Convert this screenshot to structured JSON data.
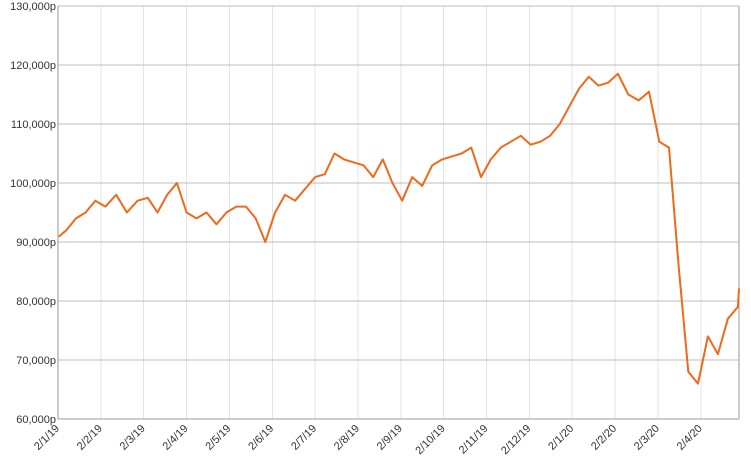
{
  "chart_data": {
    "type": "line",
    "title": "",
    "xlabel": "",
    "ylabel": "",
    "ylim": [
      60000,
      130000
    ],
    "grid": true,
    "legend": "none",
    "line_color": "#ee6a1a",
    "y_ticks": [
      {
        "value": 60000,
        "label": "60,000p"
      },
      {
        "value": 70000,
        "label": "70,000p"
      },
      {
        "value": 80000,
        "label": "80,000p"
      },
      {
        "value": 90000,
        "label": "90,000p"
      },
      {
        "value": 100000,
        "label": "100,000p"
      },
      {
        "value": 110000,
        "label": "110,000p"
      },
      {
        "value": 120000,
        "label": "120,000p"
      },
      {
        "value": 130000,
        "label": "130,000p"
      }
    ],
    "x_ticks": [
      "2/1/19",
      "2/2/19",
      "2/3/19",
      "2/4/19",
      "2/5/19",
      "2/6/19",
      "2/7/19",
      "2/8/19",
      "2/9/19",
      "2/10/19",
      "2/11/19",
      "2/12/19",
      "2/1/20",
      "2/2/20",
      "2/3/20",
      "2/4/20"
    ],
    "x_range": [
      "2019-01-02",
      "2020-05-01"
    ],
    "series": [
      {
        "x": [
          "2019-01-02",
          "2019-01-07",
          "2019-01-14",
          "2019-01-21",
          "2019-01-28",
          "2019-02-04",
          "2019-02-11",
          "2019-02-18",
          "2019-02-25",
          "2019-03-04",
          "2019-03-11",
          "2019-03-18",
          "2019-03-25",
          "2019-04-01",
          "2019-04-08",
          "2019-04-15",
          "2019-04-22",
          "2019-04-29",
          "2019-05-06",
          "2019-05-13",
          "2019-05-20",
          "2019-05-27",
          "2019-06-03",
          "2019-06-10",
          "2019-06-17",
          "2019-06-24",
          "2019-07-01",
          "2019-07-08",
          "2019-07-15",
          "2019-07-22",
          "2019-07-29",
          "2019-08-05",
          "2019-08-12",
          "2019-08-19",
          "2019-08-26",
          "2019-09-02",
          "2019-09-09",
          "2019-09-16",
          "2019-09-23",
          "2019-09-30",
          "2019-10-07",
          "2019-10-14",
          "2019-10-21",
          "2019-10-28",
          "2019-11-04",
          "2019-11-11",
          "2019-11-18",
          "2019-11-25",
          "2019-12-02",
          "2019-12-09",
          "2019-12-16",
          "2019-12-23",
          "2019-12-30",
          "2020-01-06",
          "2020-01-13",
          "2020-01-20",
          "2020-01-27",
          "2020-02-03",
          "2020-02-10",
          "2020-02-17",
          "2020-02-24",
          "2020-03-02",
          "2020-03-09",
          "2020-03-16",
          "2020-03-23",
          "2020-03-30",
          "2020-04-06",
          "2020-04-13",
          "2020-04-20",
          "2020-04-27",
          "2020-05-01"
        ],
        "values": [
          91000,
          92000,
          94000,
          95000,
          97000,
          96000,
          98000,
          95000,
          97000,
          97500,
          95000,
          98000,
          100000,
          95000,
          94000,
          95000,
          93000,
          95000,
          96000,
          96000,
          94000,
          90000,
          95000,
          98000,
          97000,
          99000,
          101000,
          101500,
          105000,
          104000,
          103500,
          103000,
          101000,
          104000,
          100000,
          97000,
          101000,
          99500,
          103000,
          104000,
          104500,
          105000,
          106000,
          101000,
          104000,
          106000,
          107000,
          108000,
          106500,
          107000,
          108000,
          110000,
          113000,
          116000,
          118000,
          116500,
          117000,
          118500,
          115000,
          114000,
          115500,
          107000,
          106000,
          86000,
          68000,
          66000,
          74000,
          71000,
          77000,
          79000,
          82000
        ]
      }
    ]
  }
}
